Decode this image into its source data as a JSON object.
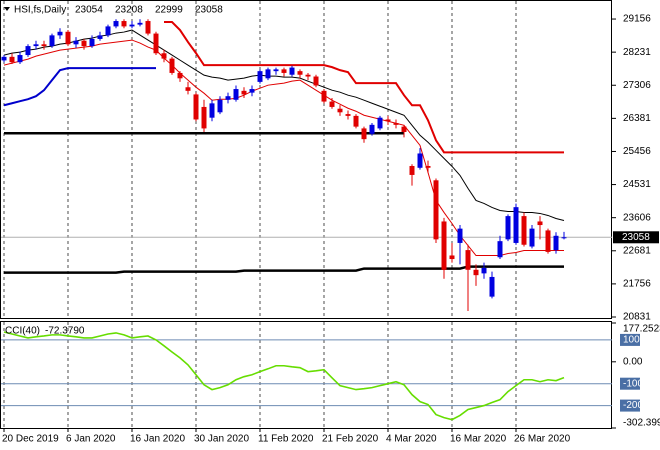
{
  "chart_data": [
    {
      "type": "candlestick",
      "title": "HSI,fs,Daily",
      "categories": [
        "20 Dec 2019",
        null,
        null,
        null,
        null,
        null,
        null,
        null,
        "6 Jan 2020",
        null,
        null,
        null,
        null,
        null,
        null,
        null,
        "16 Jan 2020",
        null,
        null,
        null,
        null,
        null,
        null,
        null,
        "30 Jan 2020",
        null,
        null,
        null,
        null,
        null,
        null,
        null,
        "11 Feb 2020",
        null,
        null,
        null,
        null,
        null,
        null,
        null,
        "21 Feb 2020",
        null,
        null,
        null,
        null,
        null,
        null,
        null,
        "4 Mar 2020",
        null,
        null,
        null,
        null,
        null,
        null,
        null,
        "16 Mar 2020",
        null,
        null,
        null,
        null,
        null,
        null,
        null,
        "26 Mar 2020",
        null,
        null,
        null,
        null,
        null,
        null
      ],
      "open": [
        28000,
        28100,
        27950,
        28150,
        28400,
        28450,
        28400,
        28700,
        28800,
        28450,
        28550,
        28400,
        28600,
        28700,
        28950,
        29100,
        28950,
        29000,
        29100,
        28750,
        28200,
        28050,
        27650,
        27250,
        27050,
        26700,
        26400,
        26550,
        26900,
        26900,
        27150,
        27100,
        27400,
        27500,
        27700,
        27750,
        27600,
        27700,
        27600,
        27550,
        27150,
        26850,
        26650,
        26500,
        26450,
        26100,
        25950,
        26100,
        26350,
        26250,
        26150,
        25050,
        25000,
        25050,
        24650,
        23500,
        22550,
        22900,
        22700,
        22150,
        22050,
        21400,
        22500,
        23000,
        22900,
        23650,
        22800,
        23500,
        23250,
        22700,
        23054
      ],
      "high": [
        28150,
        28200,
        28250,
        28450,
        28550,
        28550,
        28750,
        28900,
        28850,
        28650,
        28600,
        28700,
        28800,
        29000,
        29150,
        29150,
        29100,
        29150,
        29150,
        28800,
        28300,
        28100,
        27700,
        27400,
        27100,
        26900,
        26900,
        27000,
        27100,
        27300,
        27250,
        27300,
        27750,
        27800,
        27800,
        27800,
        27850,
        27750,
        27650,
        27600,
        27200,
        26950,
        26750,
        26600,
        26500,
        26150,
        26250,
        26450,
        26450,
        26350,
        26200,
        25100,
        25550,
        25200,
        24700,
        23600,
        22900,
        23400,
        22850,
        22300,
        22350,
        22100,
        23100,
        23700,
        24000,
        23750,
        23400,
        23650,
        23300,
        23200,
        23208
      ],
      "low": [
        27950,
        27900,
        27900,
        28100,
        28300,
        28300,
        28350,
        28600,
        28400,
        28350,
        28300,
        28350,
        28550,
        28650,
        28900,
        28900,
        28900,
        28950,
        28700,
        28150,
        27950,
        27600,
        27400,
        27050,
        26300,
        26000,
        26300,
        26500,
        26800,
        26850,
        26950,
        27000,
        27350,
        27450,
        27600,
        27550,
        27550,
        27500,
        27450,
        27250,
        26800,
        26650,
        26450,
        26350,
        26100,
        25700,
        25900,
        26050,
        26200,
        26100,
        25850,
        24500,
        24950,
        24850,
        22900,
        21900,
        22350,
        22300,
        21000,
        21700,
        21900,
        21350,
        22450,
        22950,
        22850,
        22800,
        22750,
        23000,
        22600,
        22600,
        22999
      ],
      "close": [
        28100,
        27950,
        28150,
        28400,
        28450,
        28400,
        28700,
        28800,
        28450,
        28550,
        28400,
        28600,
        28700,
        28950,
        29100,
        28950,
        29000,
        29050,
        28750,
        28200,
        28050,
        27650,
        27500,
        27150,
        26350,
        26100,
        26800,
        26900,
        27000,
        27200,
        27050,
        27200,
        27700,
        27750,
        27750,
        27650,
        27800,
        27600,
        27550,
        27300,
        26850,
        26700,
        26550,
        26450,
        26150,
        25800,
        26200,
        26400,
        26300,
        26200,
        26000,
        24800,
        25400,
        25000,
        23000,
        22150,
        22450,
        23300,
        22150,
        22000,
        22200,
        21950,
        22950,
        23650,
        23900,
        22850,
        23300,
        23400,
        22650,
        23100,
        23058
      ],
      "up_color": "#0000e0",
      "down_color": "#e00000",
      "overlays": [
        {
          "color": "#000000",
          "width": 1,
          "values": [
            28148,
            28204,
            28232,
            28288,
            28316,
            28372,
            28400,
            28456,
            28484,
            28540,
            28596,
            28624,
            28680,
            28708,
            28764,
            28792,
            28848,
            28708,
            28568,
            28428,
            28288,
            28148,
            28008,
            27868,
            27728,
            27588,
            27532,
            27504,
            27448,
            27476,
            27504,
            27560,
            27588,
            27560,
            27560,
            27532,
            27532,
            27504,
            27420,
            27336,
            27252,
            27168,
            27112,
            27028,
            26972,
            26888,
            26804,
            26720,
            26636,
            26552,
            26468,
            26188,
            25908,
            25712,
            25488,
            25264,
            25040,
            24788,
            24424,
            24088,
            24004,
            23892,
            23808,
            23780,
            23780,
            23752,
            23752,
            23724,
            23668,
            23584,
            23528
          ]
        },
        {
          "color": "#e00000",
          "width": 1,
          "values": [
            27868,
            27924,
            27980,
            28036,
            28120,
            28176,
            28232,
            28288,
            28316,
            28344,
            28372,
            28400,
            28456,
            28484,
            28512,
            28540,
            28568,
            28484,
            28372,
            28288,
            28064,
            27868,
            27644,
            27448,
            27252,
            27084,
            26888,
            26916,
            26916,
            26944,
            27028,
            27140,
            27224,
            27308,
            27336,
            27364,
            27420,
            27448,
            27308,
            27168,
            27028,
            26888,
            26776,
            26664,
            26580,
            26468,
            26412,
            26356,
            26300,
            26244,
            26188,
            25908,
            25628,
            24872,
            24088,
            23752,
            23444,
            23108,
            22828,
            22548,
            22548,
            22548,
            22548,
            22604,
            22632,
            22688,
            22688,
            22688,
            22688,
            22688,
            22688
          ]
        },
        {
          "color": "#0000cc",
          "width": 2,
          "values": [
            26748,
            26804,
            26860,
            26916,
            27000,
            27168,
            27448,
            27728,
            27784,
            27784,
            27784,
            27784,
            27784,
            27784,
            27784,
            27784,
            27784,
            27784,
            27784,
            27784,
            null,
            null,
            null,
            null,
            null,
            null,
            null,
            null,
            null,
            null,
            null,
            null,
            null,
            null,
            null,
            null,
            null,
            null,
            null,
            null,
            null,
            null,
            null,
            null,
            null,
            null,
            null,
            null,
            null,
            null,
            null,
            null,
            null,
            null,
            null,
            null,
            null,
            null,
            null,
            null,
            null,
            null,
            null,
            null,
            null,
            null,
            null,
            null,
            null,
            null,
            null
          ]
        },
        {
          "color": "#e00000",
          "width": 2,
          "values": [
            null,
            null,
            null,
            null,
            null,
            null,
            null,
            null,
            null,
            null,
            null,
            null,
            null,
            null,
            null,
            null,
            null,
            null,
            null,
            null,
            29072,
            29072,
            28848,
            28512,
            28204,
            27868,
            27868,
            27868,
            27868,
            27868,
            27868,
            27868,
            27868,
            27868,
            27868,
            27868,
            27868,
            27868,
            27868,
            27868,
            27868,
            27812,
            27728,
            27672,
            27364,
            27364,
            27364,
            27364,
            27364,
            27364,
            27028,
            26748,
            26748,
            26328,
            25768,
            25432,
            25432,
            25432,
            25432,
            25432,
            25432,
            25432,
            25432,
            25432,
            25432,
            25432,
            25432,
            25432,
            25432,
            25432,
            25432
          ]
        },
        {
          "color": "#000000",
          "width": 2.5,
          "values": [
            25964,
            25964,
            25964,
            25964,
            25964,
            25964,
            25964,
            25964,
            25964,
            25964,
            25964,
            25964,
            25964,
            25964,
            25964,
            25964,
            25964,
            25964,
            25964,
            25964,
            25964,
            25964,
            25964,
            25964,
            25964,
            25964,
            25964,
            25964,
            25964,
            25964,
            25964,
            25964,
            25964,
            25964,
            25964,
            25964,
            25964,
            25964,
            25964,
            25964,
            25964,
            25964,
            25964,
            25964,
            25964,
            25964,
            25964,
            25964,
            25964,
            25964,
            25964,
            null,
            null,
            null,
            null,
            null,
            null,
            null,
            null,
            null,
            null,
            null,
            null,
            null,
            null,
            null,
            null,
            null,
            null,
            null,
            null
          ]
        },
        {
          "color": "#000000",
          "width": 2.5,
          "values": [
            22072,
            22072,
            22072,
            22072,
            22072,
            22072,
            22072,
            22072,
            22072,
            22072,
            22072,
            22072,
            22072,
            22072,
            22072,
            22100,
            22100,
            22100,
            22100,
            22100,
            22100,
            22100,
            22100,
            22100,
            22100,
            22100,
            22100,
            22100,
            22100,
            22100,
            22128,
            22128,
            22128,
            22128,
            22128,
            22128,
            22128,
            22128,
            22128,
            22128,
            22128,
            22128,
            22128,
            22128,
            22128,
            22184,
            22184,
            22184,
            22184,
            22184,
            22184,
            22184,
            22184,
            22184,
            22184,
            22184,
            22184,
            22184,
            22240,
            22240,
            22240,
            22240,
            22240,
            22240,
            22240,
            22240,
            22240,
            22240,
            22240,
            22240,
            22240
          ]
        }
      ],
      "ylim": [
        20803,
        29632
      ],
      "yticks": [
        29156,
        28231,
        27306,
        26381,
        25456,
        24531,
        23606,
        22681,
        21756,
        20831
      ]
    },
    {
      "type": "line",
      "title": "CCI(40)",
      "color": "#66dd00",
      "values": [
        136,
        127,
        118,
        109,
        114,
        118,
        123,
        123,
        118,
        114,
        109,
        109,
        118,
        127,
        132,
        123,
        109,
        114,
        118,
        100,
        73,
        45,
        18,
        -14,
        -59,
        -105,
        -127,
        -118,
        -105,
        -82,
        -68,
        -59,
        -45,
        -32,
        -18,
        -18,
        -23,
        -27,
        -45,
        -41,
        -36,
        -73,
        -109,
        -118,
        -127,
        -123,
        -118,
        -109,
        -100,
        -91,
        -105,
        -150,
        -182,
        -195,
        -241,
        -255,
        -264,
        -245,
        -218,
        -209,
        -200,
        -186,
        -173,
        -136,
        -109,
        -82,
        -82,
        -91,
        -82,
        -86,
        -72.379
      ],
      "value_labels": [
        null,
        null,
        null,
        null,
        null,
        null,
        null,
        null,
        null,
        null,
        null,
        null,
        null,
        null,
        null,
        null,
        null,
        null,
        null,
        null,
        null,
        null,
        null,
        null,
        null,
        null,
        null,
        null,
        null,
        null,
        null,
        null,
        null,
        null,
        null,
        null,
        null,
        null,
        null,
        null,
        null,
        null,
        null,
        null,
        null,
        null,
        null,
        null,
        null,
        null,
        null,
        null,
        null,
        null,
        null,
        null,
        null,
        null,
        null,
        null,
        null,
        null,
        null,
        null,
        null,
        null,
        null,
        null,
        null,
        null,
        "-72.3790"
      ],
      "ylim": [
        -302.399,
        177.2523
      ],
      "yticks": [
        177.2523,
        100,
        {
          "value": 0,
          "label": "0.00"
        },
        -100,
        -200,
        -302.399
      ]
    }
  ]
}
